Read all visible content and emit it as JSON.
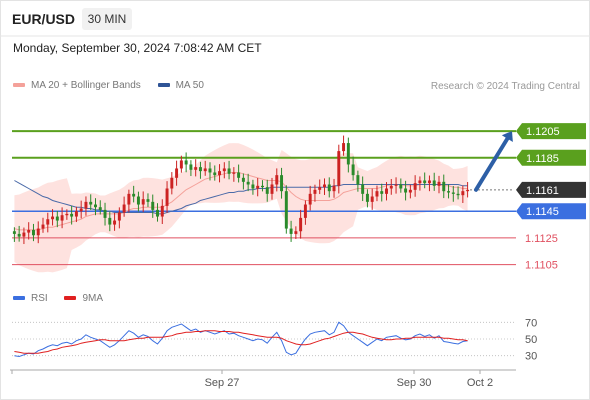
{
  "header": {
    "symbol": "EUR/USD",
    "timeframe": "30 MIN",
    "datetime": "Monday, September 30, 2024 7:08:42 AM CET"
  },
  "legend": {
    "ma20": "MA 20 + Bollinger Bands",
    "ma50": "MA 50",
    "credit": "Research © 2024 Trading Central"
  },
  "rsi_legend": {
    "rsi": "RSI",
    "ma": "9MA"
  },
  "colors": {
    "resistance": "#5aa01e",
    "support": "#3b6fe0",
    "support_minor": "#e05060",
    "last_price": "#333333",
    "bollinger": "#fdd8d4",
    "ma20": "#f4a19a",
    "ma50": "#4a6aa8",
    "bull": "#cc2222",
    "bear": "#2a8a2a",
    "arrow": "#2d5fa6",
    "rsi": "#3b6fe0",
    "rsi_ma": "#e02020"
  },
  "chart_data": {
    "type": "candlestick",
    "instrument": "EUR/USD",
    "interval": "30 MIN",
    "ylim": [
      1.1092,
      1.1232
    ],
    "x_labels": [
      "Sep 27",
      "Sep 30",
      "Oct 2"
    ],
    "price_levels": [
      {
        "value": "1.1205",
        "type": "resistance"
      },
      {
        "value": "1.1185",
        "type": "resistance"
      },
      {
        "value": "1.1161",
        "type": "last"
      },
      {
        "value": "1.1145",
        "type": "support"
      },
      {
        "value": "1.1125",
        "type": "support_minor"
      },
      {
        "value": "1.1105",
        "type": "support_minor"
      }
    ],
    "forecast": {
      "from": 1.1161,
      "to": 1.1205,
      "direction": "up"
    },
    "candles_close": [
      1.1128,
      1.1126,
      1.1129,
      1.1131,
      1.1127,
      1.1132,
      1.1135,
      1.1139,
      1.1141,
      1.1138,
      1.1142,
      1.1143,
      1.1141,
      1.1145,
      1.1147,
      1.1152,
      1.115,
      1.1148,
      1.1146,
      1.114,
      1.1135,
      1.1138,
      1.1144,
      1.115,
      1.1158,
      1.1156,
      1.115,
      1.1154,
      1.1152,
      1.1146,
      1.1141,
      1.1149,
      1.1162,
      1.117,
      1.1177,
      1.1183,
      1.118,
      1.1176,
      1.1178,
      1.1175,
      1.1177,
      1.1174,
      1.1172,
      1.1175,
      1.1177,
      1.1173,
      1.1174,
      1.117,
      1.1167,
      1.1165,
      1.1162,
      1.1164,
      1.1163,
      1.1158,
      1.1165,
      1.1172,
      1.116,
      1.1132,
      1.1128,
      1.113,
      1.114,
      1.115,
      1.1158,
      1.1161,
      1.1163,
      1.1165,
      1.116,
      1.1164,
      1.119,
      1.1196,
      1.118,
      1.1172,
      1.1165,
      1.1158,
      1.1152,
      1.1156,
      1.116,
      1.1158,
      1.1162,
      1.1164,
      1.1165,
      1.1162,
      1.1159,
      1.1161,
      1.1166,
      1.1168,
      1.1166,
      1.1168,
      1.1164,
      1.1167,
      1.116,
      1.1159,
      1.1158,
      1.1157,
      1.116,
      1.1161
    ],
    "ma20": [
      1.1132,
      1.1131,
      1.1131,
      1.1131,
      1.1131,
      1.1131,
      1.1132,
      1.1133,
      1.1133,
      1.1134,
      1.1135,
      1.1136,
      1.1137,
      1.1138,
      1.1139,
      1.1141,
      1.1142,
      1.1143,
      1.1143,
      1.1143,
      1.1143,
      1.1143,
      1.1143,
      1.1144,
      1.1146,
      1.1147,
      1.1147,
      1.1148,
      1.1148,
      1.1148,
      1.1148,
      1.1148,
      1.115,
      1.1152,
      1.1155,
      1.1158,
      1.1161,
      1.1163,
      1.1165,
      1.1167,
      1.1169,
      1.117,
      1.1171,
      1.1172,
      1.1173,
      1.1174,
      1.1174,
      1.1174,
      1.1173,
      1.1172,
      1.1171,
      1.117,
      1.1169,
      1.1168,
      1.1168,
      1.1168,
      1.1167,
      1.1163,
      1.1159,
      1.1156,
      1.1154,
      1.1153,
      1.1153,
      1.1153,
      1.1153,
      1.1153,
      1.1153,
      1.1154,
      1.1156,
      1.1159,
      1.116,
      1.1161,
      1.1162,
      1.1162,
      1.1162,
      1.1162,
      1.1162,
      1.1163,
      1.1164,
      1.1165,
      1.1165,
      1.1165,
      1.1164,
      1.1164,
      1.1164,
      1.1165,
      1.1165,
      1.1165,
      1.1165,
      1.1165,
      1.1164,
      1.1164,
      1.1163,
      1.1163,
      1.1162,
      1.1162
    ],
    "ma50": [
      1.1168,
      1.1166,
      1.1164,
      1.1162,
      1.116,
      1.1158,
      1.1156,
      1.1155,
      1.1153,
      1.1152,
      1.1151,
      1.115,
      1.1149,
      1.1148,
      1.1148,
      1.1147,
      1.1147,
      1.1146,
      1.1146,
      1.1145,
      1.1145,
      1.1144,
      1.1144,
      1.1144,
      1.1144,
      1.1144,
      1.1144,
      1.1144,
      1.1144,
      1.1144,
      1.1143,
      1.1143,
      1.1144,
      1.1145,
      1.1146,
      1.1147,
      1.1149,
      1.115,
      1.1151,
      1.1153,
      1.1154,
      1.1155,
      1.1156,
      1.1157,
      1.1158,
      1.1159,
      1.1159,
      1.116,
      1.116,
      1.1161,
      1.1161,
      1.1162,
      1.1162,
      1.1162,
      1.1163,
      1.1163,
      1.1163,
      1.1163,
      1.1163,
      1.1163,
      1.1163,
      1.1163,
      1.1163,
      1.1163,
      1.1163,
      1.1163,
      1.1163,
      1.1164,
      1.1164,
      1.1165,
      1.1165,
      1.1165,
      1.1165,
      1.1165,
      1.1165,
      1.1165,
      1.1165,
      1.1165,
      1.1165,
      1.1165,
      1.1165,
      1.1165,
      1.1165,
      1.1165,
      1.1165,
      1.1165,
      1.1165,
      1.1165,
      1.1165,
      1.1165,
      1.1165,
      1.1165,
      1.1165,
      1.1165,
      1.1164,
      1.1164
    ],
    "rsi": {
      "yticks": [
        "70",
        "50",
        "30"
      ],
      "ylim": [
        20,
        80
      ],
      "values": [
        30,
        29,
        31,
        33,
        32,
        36,
        38,
        41,
        43,
        42,
        45,
        46,
        44,
        48,
        50,
        55,
        52,
        50,
        48,
        44,
        40,
        43,
        48,
        54,
        60,
        57,
        52,
        55,
        53,
        48,
        44,
        51,
        60,
        64,
        66,
        68,
        64,
        60,
        62,
        58,
        60,
        58,
        56,
        58,
        60,
        56,
        57,
        54,
        52,
        50,
        48,
        50,
        49,
        45,
        52,
        58,
        48,
        34,
        31,
        33,
        42,
        50,
        56,
        58,
        59,
        60,
        55,
        58,
        70,
        66,
        58,
        54,
        50,
        46,
        42,
        46,
        50,
        48,
        52,
        53,
        54,
        51,
        49,
        50,
        54,
        56,
        53,
        55,
        51,
        54,
        47,
        46,
        45,
        44,
        47,
        48
      ],
      "ma": [
        35,
        34,
        33,
        33,
        33,
        33,
        34,
        35,
        37,
        38,
        40,
        41,
        42,
        43,
        45,
        46,
        47,
        48,
        49,
        49,
        48,
        48,
        48,
        48,
        49,
        50,
        51,
        51,
        52,
        52,
        52,
        52,
        53,
        54,
        56,
        57,
        58,
        58,
        59,
        59,
        60,
        60,
        60,
        59,
        59,
        59,
        58,
        58,
        57,
        56,
        55,
        54,
        53,
        52,
        52,
        52,
        51,
        48,
        46,
        44,
        43,
        43,
        44,
        46,
        48,
        50,
        51,
        53,
        55,
        57,
        58,
        58,
        57,
        56,
        54,
        52,
        51,
        50,
        49,
        49,
        50,
        50,
        51,
        51,
        52,
        52,
        52,
        52,
        52,
        52,
        51,
        51,
        50,
        49,
        49,
        48
      ]
    }
  }
}
